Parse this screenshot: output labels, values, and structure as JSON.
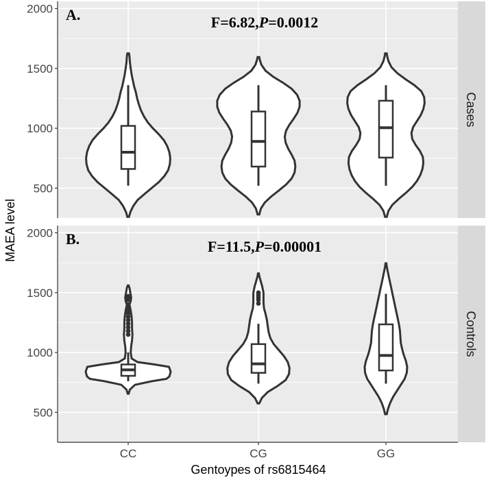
{
  "chart_data": {
    "type": "violin",
    "xlabel": "Gentoypes of rs6815464",
    "ylabel": "MAEA level",
    "categories": [
      "CC",
      "CG",
      "GG"
    ],
    "ylim": [
      250,
      2060
    ],
    "yticks": [
      500,
      1000,
      1500,
      2000
    ],
    "grid": true,
    "panels": [
      {
        "tag": "A.",
        "strip": "Cases",
        "stat": {
          "f_label": "F=6.82,",
          "p_letter": "P",
          "p_value": "=0.0012"
        },
        "groups": [
          {
            "category": "CC",
            "box": {
              "lower": 520,
              "q1": 660,
              "median": 800,
              "q3": 1020,
              "upper": 1360
            },
            "density": [
              [
                260,
                0.02
              ],
              [
                300,
                0.05
              ],
              [
                350,
                0.12
              ],
              [
                400,
                0.22
              ],
              [
                450,
                0.38
              ],
              [
                500,
                0.55
              ],
              [
                550,
                0.72
              ],
              [
                600,
                0.85
              ],
              [
                650,
                0.94
              ],
              [
                700,
                0.98
              ],
              [
                750,
                0.99
              ],
              [
                800,
                0.97
              ],
              [
                850,
                0.92
              ],
              [
                900,
                0.84
              ],
              [
                950,
                0.72
              ],
              [
                1000,
                0.58
              ],
              [
                1050,
                0.46
              ],
              [
                1100,
                0.37
              ],
              [
                1150,
                0.3
              ],
              [
                1200,
                0.25
              ],
              [
                1250,
                0.21
              ],
              [
                1300,
                0.18
              ],
              [
                1350,
                0.14
              ],
              [
                1400,
                0.11
              ],
              [
                1450,
                0.08
              ],
              [
                1500,
                0.06
              ],
              [
                1550,
                0.04
              ],
              [
                1600,
                0.03
              ],
              [
                1625,
                0.02
              ]
            ],
            "outliers": []
          },
          {
            "category": "CG",
            "box": {
              "lower": 520,
              "q1": 680,
              "median": 890,
              "q3": 1140,
              "upper": 1360
            },
            "density": [
              [
                280,
                0.02
              ],
              [
                330,
                0.06
              ],
              [
                380,
                0.15
              ],
              [
                430,
                0.3
              ],
              [
                480,
                0.48
              ],
              [
                530,
                0.65
              ],
              [
                580,
                0.78
              ],
              [
                630,
                0.85
              ],
              [
                680,
                0.87
              ],
              [
                730,
                0.85
              ],
              [
                780,
                0.78
              ],
              [
                830,
                0.7
              ],
              [
                880,
                0.64
              ],
              [
                930,
                0.62
              ],
              [
                980,
                0.65
              ],
              [
                1030,
                0.73
              ],
              [
                1080,
                0.83
              ],
              [
                1130,
                0.92
              ],
              [
                1180,
                0.97
              ],
              [
                1230,
                0.97
              ],
              [
                1280,
                0.91
              ],
              [
                1330,
                0.78
              ],
              [
                1380,
                0.58
              ],
              [
                1430,
                0.35
              ],
              [
                1480,
                0.17
              ],
              [
                1530,
                0.07
              ],
              [
                1575,
                0.03
              ],
              [
                1595,
                0.02
              ]
            ],
            "outliers": []
          },
          {
            "category": "GG",
            "box": {
              "lower": 520,
              "q1": 755,
              "median": 1005,
              "q3": 1230,
              "upper": 1360
            },
            "density": [
              [
                260,
                0.02
              ],
              [
                310,
                0.06
              ],
              [
                360,
                0.15
              ],
              [
                410,
                0.3
              ],
              [
                460,
                0.47
              ],
              [
                510,
                0.62
              ],
              [
                560,
                0.73
              ],
              [
                610,
                0.81
              ],
              [
                660,
                0.86
              ],
              [
                710,
                0.88
              ],
              [
                760,
                0.87
              ],
              [
                810,
                0.8
              ],
              [
                860,
                0.7
              ],
              [
                910,
                0.62
              ],
              [
                960,
                0.6
              ],
              [
                1010,
                0.64
              ],
              [
                1060,
                0.73
              ],
              [
                1110,
                0.82
              ],
              [
                1160,
                0.88
              ],
              [
                1210,
                0.91
              ],
              [
                1260,
                0.9
              ],
              [
                1310,
                0.83
              ],
              [
                1360,
                0.67
              ],
              [
                1410,
                0.46
              ],
              [
                1460,
                0.27
              ],
              [
                1510,
                0.13
              ],
              [
                1560,
                0.06
              ],
              [
                1600,
                0.03
              ],
              [
                1625,
                0.02
              ]
            ],
            "outliers": []
          }
        ]
      },
      {
        "tag": "B.",
        "strip": "Controls",
        "stat": {
          "f_label": "F=11.5,",
          "p_letter": "P",
          "p_value": "=0.00001"
        },
        "groups": [
          {
            "category": "CC",
            "box": {
              "lower": 760,
              "q1": 805,
              "median": 855,
              "q3": 900,
              "upper": 1000
            },
            "density": [
              [
                655,
                0.01
              ],
              [
                690,
                0.04
              ],
              [
                730,
                0.16
              ],
              [
                760,
                0.55
              ],
              [
                780,
                0.9
              ],
              [
                800,
                0.97
              ],
              [
                840,
                1.0
              ],
              [
                880,
                0.96
              ],
              [
                900,
                0.62
              ],
              [
                920,
                0.22
              ],
              [
                950,
                0.08
              ],
              [
                1000,
                0.06
              ],
              [
                1050,
                0.07
              ],
              [
                1100,
                0.09
              ],
              [
                1150,
                0.1
              ],
              [
                1200,
                0.09
              ],
              [
                1250,
                0.09
              ],
              [
                1300,
                0.08
              ],
              [
                1350,
                0.06
              ],
              [
                1400,
                0.03
              ],
              [
                1430,
                0.06
              ],
              [
                1460,
                0.07
              ],
              [
                1500,
                0.05
              ],
              [
                1540,
                0.03
              ],
              [
                1560,
                0.01
              ]
            ],
            "outliers": [
              1150,
              1180,
              1210,
              1240,
              1270,
              1300,
              1330,
              1350,
              1380,
              1400,
              1440,
              1460,
              1470
            ]
          },
          {
            "category": "CG",
            "box": {
              "lower": 740,
              "q1": 830,
              "median": 905,
              "q3": 1070,
              "upper": 1240
            },
            "density": [
              [
                575,
                0.02
              ],
              [
                620,
                0.08
              ],
              [
                670,
                0.22
              ],
              [
                720,
                0.45
              ],
              [
                770,
                0.64
              ],
              [
                820,
                0.72
              ],
              [
                870,
                0.73
              ],
              [
                920,
                0.69
              ],
              [
                970,
                0.6
              ],
              [
                1020,
                0.48
              ],
              [
                1070,
                0.36
              ],
              [
                1120,
                0.28
              ],
              [
                1170,
                0.24
              ],
              [
                1220,
                0.22
              ],
              [
                1270,
                0.2
              ],
              [
                1320,
                0.17
              ],
              [
                1370,
                0.13
              ],
              [
                1420,
                0.12
              ],
              [
                1460,
                0.12
              ],
              [
                1500,
                0.12
              ],
              [
                1550,
                0.09
              ],
              [
                1600,
                0.05
              ],
              [
                1640,
                0.02
              ],
              [
                1660,
                0.01
              ]
            ],
            "outliers": [
              1410,
              1440,
              1460,
              1480,
              1500
            ]
          },
          {
            "category": "GG",
            "box": {
              "lower": 740,
              "q1": 850,
              "median": 975,
              "q3": 1235,
              "upper": 1490
            },
            "density": [
              [
                485,
                0.02
              ],
              [
                530,
                0.05
              ],
              [
                580,
                0.1
              ],
              [
                630,
                0.17
              ],
              [
                680,
                0.26
              ],
              [
                730,
                0.35
              ],
              [
                780,
                0.44
              ],
              [
                830,
                0.49
              ],
              [
                880,
                0.5
              ],
              [
                930,
                0.47
              ],
              [
                980,
                0.42
              ],
              [
                1030,
                0.38
              ],
              [
                1080,
                0.35
              ],
              [
                1130,
                0.34
              ],
              [
                1180,
                0.33
              ],
              [
                1230,
                0.31
              ],
              [
                1280,
                0.28
              ],
              [
                1330,
                0.25
              ],
              [
                1380,
                0.22
              ],
              [
                1430,
                0.19
              ],
              [
                1480,
                0.16
              ],
              [
                1530,
                0.13
              ],
              [
                1580,
                0.1
              ],
              [
                1630,
                0.07
              ],
              [
                1680,
                0.04
              ],
              [
                1720,
                0.02
              ],
              [
                1745,
                0.01
              ]
            ],
            "outliers": []
          }
        ]
      }
    ]
  }
}
